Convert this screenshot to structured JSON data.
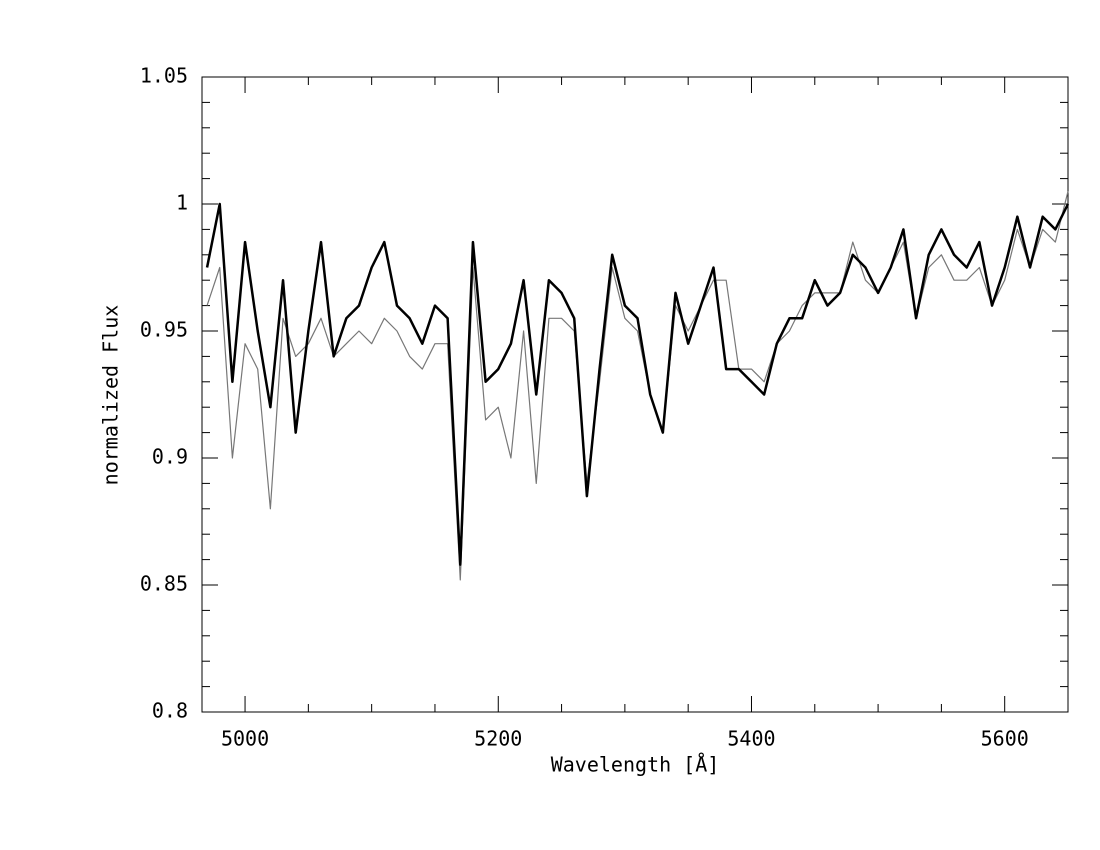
{
  "chart_data": {
    "type": "line",
    "xlabel": "Wavelength [Å]",
    "ylabel": "normalized Flux",
    "xlim": [
      4966,
      5650
    ],
    "ylim": [
      0.8,
      1.05
    ],
    "xticks": [
      5000,
      5200,
      5400,
      5600
    ],
    "yticks": [
      0.8,
      0.85,
      0.9,
      0.95,
      1,
      1.05
    ],
    "xminorticks": [
      5050,
      5100,
      5150,
      5250,
      5300,
      5350,
      5450,
      5500,
      5550
    ],
    "yminorticks": [
      0.81,
      0.82,
      0.83,
      0.84,
      0.86,
      0.87,
      0.88,
      0.89,
      0.91,
      0.92,
      0.93,
      0.94,
      0.96,
      0.97,
      0.98,
      0.99,
      1.01,
      1.02,
      1.03,
      1.04
    ],
    "x": [
      4970,
      4980,
      4990,
      5000,
      5010,
      5020,
      5030,
      5040,
      5050,
      5060,
      5070,
      5080,
      5090,
      5100,
      5110,
      5120,
      5130,
      5140,
      5150,
      5160,
      5170,
      5180,
      5190,
      5200,
      5210,
      5220,
      5230,
      5240,
      5250,
      5260,
      5270,
      5280,
      5290,
      5300,
      5310,
      5320,
      5330,
      5340,
      5350,
      5360,
      5370,
      5380,
      5390,
      5400,
      5410,
      5420,
      5430,
      5440,
      5450,
      5460,
      5470,
      5480,
      5490,
      5500,
      5510,
      5520,
      5530,
      5540,
      5550,
      5560,
      5570,
      5580,
      5590,
      5600,
      5610,
      5620,
      5630,
      5640,
      5650
    ],
    "series": [
      {
        "color": "#777777",
        "width": 1.2,
        "values": [
          0.96,
          0.975,
          0.9,
          0.945,
          0.935,
          0.88,
          0.955,
          0.94,
          0.945,
          0.955,
          0.94,
          0.945,
          0.95,
          0.945,
          0.955,
          0.95,
          0.94,
          0.935,
          0.945,
          0.945,
          0.852,
          0.975,
          0.915,
          0.92,
          0.9,
          0.95,
          0.89,
          0.955,
          0.955,
          0.95,
          0.89,
          0.93,
          0.975,
          0.955,
          0.95,
          0.925,
          0.91,
          0.96,
          0.95,
          0.96,
          0.97,
          0.97,
          0.935,
          0.935,
          0.93,
          0.945,
          0.95,
          0.96,
          0.965,
          0.965,
          0.965,
          0.985,
          0.97,
          0.965,
          0.975,
          0.985,
          0.955,
          0.975,
          0.98,
          0.97,
          0.97,
          0.975,
          0.96,
          0.97,
          0.99,
          0.975,
          0.99,
          0.985,
          1.005
        ]
      },
      {
        "color": "#000000",
        "width": 2.5,
        "values": [
          0.975,
          1.0,
          0.93,
          0.985,
          0.95,
          0.92,
          0.97,
          0.91,
          0.95,
          0.985,
          0.94,
          0.955,
          0.96,
          0.975,
          0.985,
          0.96,
          0.955,
          0.945,
          0.96,
          0.955,
          0.858,
          0.985,
          0.93,
          0.935,
          0.945,
          0.97,
          0.925,
          0.97,
          0.965,
          0.955,
          0.885,
          0.935,
          0.98,
          0.96,
          0.955,
          0.925,
          0.91,
          0.965,
          0.945,
          0.96,
          0.975,
          0.935,
          0.935,
          0.93,
          0.925,
          0.945,
          0.955,
          0.955,
          0.97,
          0.96,
          0.965,
          0.98,
          0.975,
          0.965,
          0.975,
          0.99,
          0.955,
          0.98,
          0.99,
          0.98,
          0.975,
          0.985,
          0.96,
          0.975,
          0.995,
          0.975,
          0.995,
          0.99,
          1.0
        ]
      }
    ]
  }
}
